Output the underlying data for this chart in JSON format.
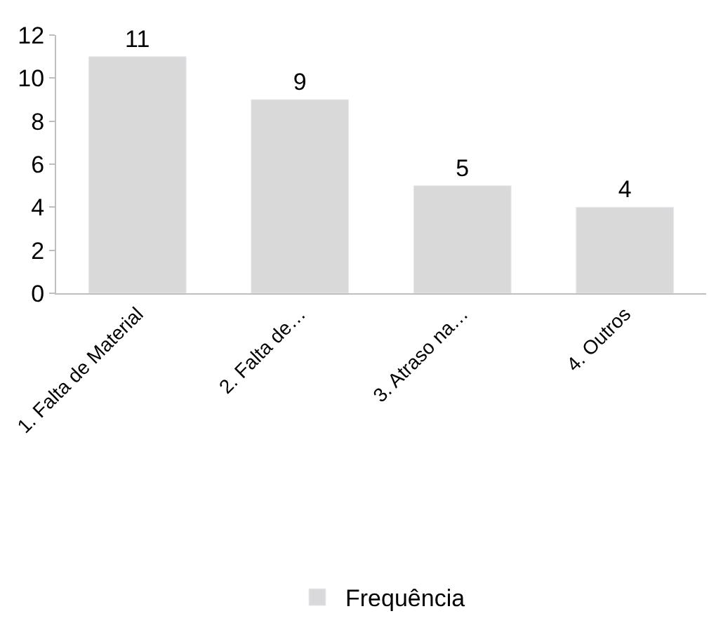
{
  "chart_data": {
    "type": "bar",
    "categories": [
      "1. Falta de Material",
      "2. Falta de…",
      "3. Atraso na…",
      "4. Outros"
    ],
    "series": [
      {
        "name": "Frequência",
        "color": "#d9d9d9",
        "values": [
          11,
          9,
          5,
          4
        ]
      }
    ],
    "ylim": [
      0,
      12
    ],
    "yticks": [
      0,
      2,
      4,
      6,
      8,
      10,
      12
    ],
    "data_labels": true,
    "legend": "bottom"
  }
}
